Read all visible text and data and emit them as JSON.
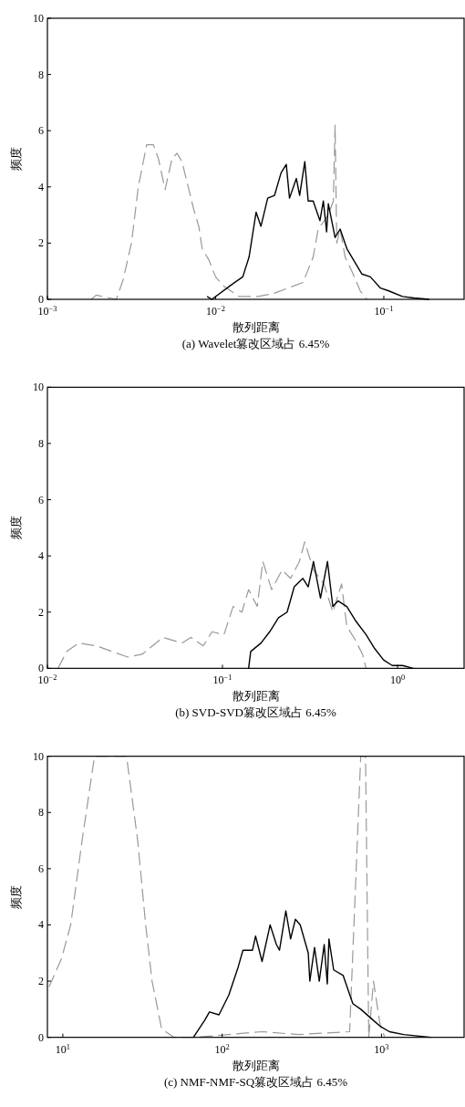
{
  "chart_data": [
    {
      "type": "line",
      "title": "(a) Wavelet篡改区域占 6.45%",
      "xlabel": "散列距离",
      "ylabel": "频度",
      "log": "x",
      "grid": false,
      "xlim": [
        0.001,
        0.3
      ],
      "xticks": [
        {
          "value": 0.001,
          "label": "10$^{−3}$"
        },
        {
          "value": 0.01,
          "label": "10$^{−2}$"
        },
        {
          "value": 0.1,
          "label": "10$^{−1}$"
        }
      ],
      "ylim": [
        0,
        10
      ],
      "yticks": [
        0,
        2,
        4,
        6,
        8,
        10
      ],
      "series": [
        {
          "color": "#999999",
          "line_style": "dashed",
          "x": [
            0.00182,
            0.00195,
            0.00257,
            0.00282,
            0.00316,
            0.00347,
            0.00389,
            0.00427,
            0.00457,
            0.00501,
            0.0055,
            0.00589,
            0.00631,
            0.00741,
            0.00794,
            0.00832,
            0.00912,
            0.01,
            0.011,
            0.0123,
            0.0138,
            0.0178,
            0.0219,
            0.0269,
            0.0331,
            0.038,
            0.0407,
            0.0468,
            0.0501,
            0.0513,
            0.0525,
            0.055,
            0.0589,
            0.0646,
            0.0724,
            0.0794
          ],
          "values": [
            0,
            0.15,
            0,
            0.7,
            2,
            4,
            5.5,
            5.5,
            5,
            3.9,
            5,
            5.2,
            4.9,
            3.2,
            2.6,
            1.8,
            1.4,
            0.8,
            0.5,
            0.3,
            0.1,
            0.1,
            0.2,
            0.4,
            0.6,
            1.5,
            2.5,
            3,
            3.5,
            6.2,
            2,
            2.5,
            1.5,
            1,
            0.3,
            0
          ]
        },
        {
          "color": "#000000",
          "line_style": "solid",
          "x": [
            0.0089,
            0.0095,
            0.0123,
            0.0145,
            0.0158,
            0.0174,
            0.0186,
            0.0204,
            0.0224,
            0.0245,
            0.0263,
            0.0275,
            0.0302,
            0.0316,
            0.0339,
            0.0355,
            0.038,
            0.0417,
            0.0437,
            0.0457,
            0.0468,
            0.0513,
            0.055,
            0.0603,
            0.0646,
            0.0741,
            0.0832,
            0.0955,
            0.107,
            0.129,
            0.151,
            0.186
          ],
          "values": [
            0.1,
            0,
            0.5,
            0.8,
            1.5,
            3.1,
            2.6,
            3.6,
            3.7,
            4.5,
            4.8,
            3.6,
            4.3,
            3.7,
            4.9,
            3.5,
            3.5,
            2.8,
            3.5,
            2.4,
            3.4,
            2.2,
            2.5,
            1.8,
            1.5,
            0.9,
            0.8,
            0.4,
            0.3,
            0.1,
            0.05,
            0
          ]
        }
      ]
    },
    {
      "type": "line",
      "title": "(b) SVD-SVD篡改区域占 6.45%",
      "xlabel": "散列距离",
      "ylabel": "频度",
      "log": "x",
      "grid": false,
      "xlim": [
        0.01,
        2.4
      ],
      "xticks": [
        {
          "value": 0.01,
          "label": "10$^{−2}$"
        },
        {
          "value": 0.1,
          "label": "10$^{−1}$"
        },
        {
          "value": 1,
          "label": "10$^{0}$"
        }
      ],
      "ylim": [
        0,
        10
      ],
      "yticks": [
        0,
        2,
        4,
        6,
        8,
        10
      ],
      "series": [
        {
          "color": "#999999",
          "line_style": "dashed",
          "x": [
            0.0115,
            0.0129,
            0.0151,
            0.019,
            0.0288,
            0.0347,
            0.0457,
            0.0589,
            0.066,
            0.0776,
            0.0871,
            0.102,
            0.115,
            0.129,
            0.141,
            0.158,
            0.17,
            0.191,
            0.219,
            0.245,
            0.275,
            0.295,
            0.331,
            0.38,
            0.427,
            0.479,
            0.513,
            0.575,
            0.631,
            0.661
          ],
          "values": [
            0,
            0.6,
            0.9,
            0.8,
            0.4,
            0.5,
            1.1,
            0.9,
            1.1,
            0.8,
            1.3,
            1.2,
            2.2,
            2,
            2.8,
            2.2,
            3.8,
            2.8,
            3.5,
            3.2,
            3.8,
            4.5,
            3.5,
            3,
            2,
            3,
            1.5,
            1,
            0.5,
            0
          ]
        },
        {
          "color": "#000000",
          "line_style": "solid",
          "x": [
            0.141,
            0.145,
            0.166,
            0.186,
            0.209,
            0.234,
            0.257,
            0.288,
            0.309,
            0.331,
            0.363,
            0.398,
            0.427,
            0.457,
            0.513,
            0.575,
            0.661,
            0.741,
            0.832,
            0.933,
            1.07,
            1.23
          ],
          "values": [
            0,
            0.6,
            0.9,
            1.3,
            1.8,
            2,
            2.9,
            3.2,
            2.9,
            3.8,
            2.5,
            3.8,
            2.2,
            2.4,
            2.2,
            1.7,
            1.2,
            0.7,
            0.3,
            0.1,
            0.1,
            0
          ]
        }
      ]
    },
    {
      "type": "line",
      "title": "(c) NMF-NMF-SQ篡改区域占 6.45%",
      "xlabel": "散列距离",
      "ylabel": "频度",
      "log": "x",
      "grid": false,
      "xlim": [
        8,
        3300
      ],
      "xticks": [
        {
          "value": 10,
          "label": "10$^{1}$"
        },
        {
          "value": 100,
          "label": "10$^{2}$"
        },
        {
          "value": 1000,
          "label": "10$^{3}$"
        }
      ],
      "ylim": [
        0,
        10
      ],
      "yticks": [
        0,
        2,
        4,
        6,
        8,
        10
      ],
      "series": [
        {
          "color": "#999999",
          "line_style": "dashed",
          "x": [
            8.2,
            9.8,
            11.2,
            13.2,
            15.8,
            25.1,
            29.5,
            33.1,
            36.3,
            41.7,
            50,
            67.6,
            178,
            302,
            631,
            741,
            794,
            832,
            891,
            977,
            1047
          ],
          "values": [
            1.8,
            2.8,
            4,
            7,
            10,
            10,
            7,
            4,
            2,
            0.3,
            0,
            0,
            0.2,
            0.1,
            0.2,
            10,
            10,
            0,
            2,
            0.5,
            0
          ]
        },
        {
          "color": "#000000",
          "line_style": "solid",
          "x": [
            66,
            77.6,
            83.2,
            95.5,
            110,
            126,
            135,
            155,
            162,
            178,
            200,
            219,
            229,
            251,
            269,
            288,
            309,
            347,
            355,
            380,
            407,
            437,
            457,
            468,
            501,
            575,
            661,
            741,
            851,
            977,
            1122,
            1380,
            2042
          ],
          "values": [
            0,
            0.6,
            0.9,
            0.8,
            1.5,
            2.5,
            3.1,
            3.1,
            3.6,
            2.7,
            4,
            3.3,
            3.1,
            4.5,
            3.5,
            4.2,
            4,
            3,
            2,
            3.2,
            2,
            3.3,
            1.9,
            3.5,
            2.4,
            2.2,
            1.2,
            1,
            0.7,
            0.4,
            0.2,
            0.1,
            0
          ]
        }
      ]
    }
  ]
}
